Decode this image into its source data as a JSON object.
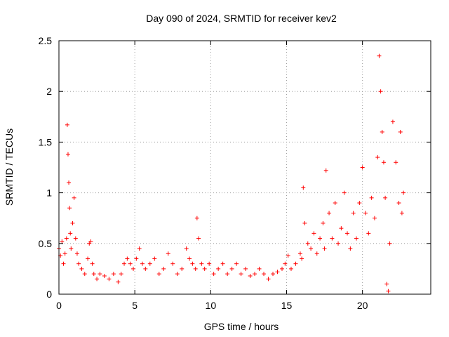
{
  "chart_data": {
    "type": "scatter",
    "title": "Day 090 of 2024, SRMTID for receiver kev2",
    "xlabel": "GPS time / hours",
    "ylabel": "SRMTID / TECUs",
    "xlim": [
      0,
      24.5
    ],
    "ylim": [
      0,
      2.5
    ],
    "x_ticks": [
      0,
      5,
      10,
      15,
      20
    ],
    "x_tick_labels": [
      "0",
      "5",
      "10",
      "15",
      "20"
    ],
    "y_ticks": [
      0,
      0.5,
      1,
      1.5,
      2,
      2.5
    ],
    "y_tick_labels": [
      "0",
      "0.5",
      "1",
      "1.5",
      "2",
      "2.5"
    ],
    "grid": true,
    "marker": "+",
    "series": [
      {
        "name": "SRMTID",
        "color": "#ff0000",
        "x": [
          0.0,
          0.1,
          0.2,
          0.3,
          0.4,
          0.5,
          0.55,
          0.6,
          0.65,
          0.7,
          0.75,
          0.8,
          0.9,
          1.0,
          1.1,
          1.2,
          1.3,
          1.5,
          1.7,
          1.9,
          2.0,
          2.1,
          2.2,
          2.3,
          2.5,
          2.7,
          3.0,
          3.3,
          3.6,
          3.9,
          4.1,
          4.3,
          4.5,
          4.7,
          4.9,
          5.1,
          5.3,
          5.5,
          5.7,
          6.0,
          6.3,
          6.6,
          6.9,
          7.2,
          7.5,
          7.8,
          8.1,
          8.4,
          8.6,
          8.8,
          9.0,
          9.1,
          9.2,
          9.4,
          9.6,
          9.9,
          10.2,
          10.5,
          10.8,
          11.1,
          11.4,
          11.7,
          12.0,
          12.3,
          12.6,
          12.9,
          13.2,
          13.5,
          13.8,
          14.1,
          14.4,
          14.7,
          14.9,
          15.1,
          15.3,
          15.6,
          15.9,
          16.0,
          16.1,
          16.2,
          16.4,
          16.6,
          16.8,
          17.0,
          17.2,
          17.4,
          17.5,
          17.6,
          17.8,
          18.0,
          18.2,
          18.4,
          18.6,
          18.8,
          19.0,
          19.2,
          19.4,
          19.6,
          19.8,
          20.0,
          20.2,
          20.4,
          20.6,
          20.8,
          21.0,
          21.1,
          21.2,
          21.3,
          21.4,
          21.5,
          21.6,
          21.7,
          21.8,
          22.0,
          22.2,
          22.4,
          22.5,
          22.6,
          22.7
        ],
        "y": [
          0.45,
          0.38,
          0.52,
          0.3,
          0.4,
          0.55,
          1.67,
          1.38,
          1.1,
          0.85,
          0.6,
          0.45,
          0.7,
          0.95,
          0.55,
          0.4,
          0.3,
          0.25,
          0.2,
          0.35,
          0.5,
          0.52,
          0.3,
          0.2,
          0.15,
          0.2,
          0.18,
          0.15,
          0.2,
          0.12,
          0.2,
          0.3,
          0.35,
          0.3,
          0.25,
          0.35,
          0.45,
          0.3,
          0.25,
          0.3,
          0.35,
          0.2,
          0.25,
          0.4,
          0.3,
          0.2,
          0.25,
          0.45,
          0.35,
          0.3,
          0.25,
          0.75,
          0.55,
          0.3,
          0.25,
          0.3,
          0.2,
          0.25,
          0.3,
          0.2,
          0.25,
          0.3,
          0.2,
          0.25,
          0.18,
          0.2,
          0.25,
          0.2,
          0.15,
          0.2,
          0.22,
          0.25,
          0.3,
          0.38,
          0.25,
          0.3,
          0.4,
          0.35,
          1.05,
          0.7,
          0.5,
          0.45,
          0.6,
          0.4,
          0.55,
          0.7,
          0.45,
          1.22,
          0.8,
          0.55,
          0.9,
          0.5,
          0.65,
          1.0,
          0.6,
          0.45,
          0.8,
          0.55,
          0.9,
          1.25,
          0.8,
          0.6,
          0.95,
          0.75,
          1.35,
          2.35,
          2.0,
          1.6,
          1.3,
          0.95,
          0.1,
          0.03,
          0.5,
          1.7,
          1.3,
          0.9,
          1.6,
          0.8,
          1.0
        ]
      }
    ]
  }
}
